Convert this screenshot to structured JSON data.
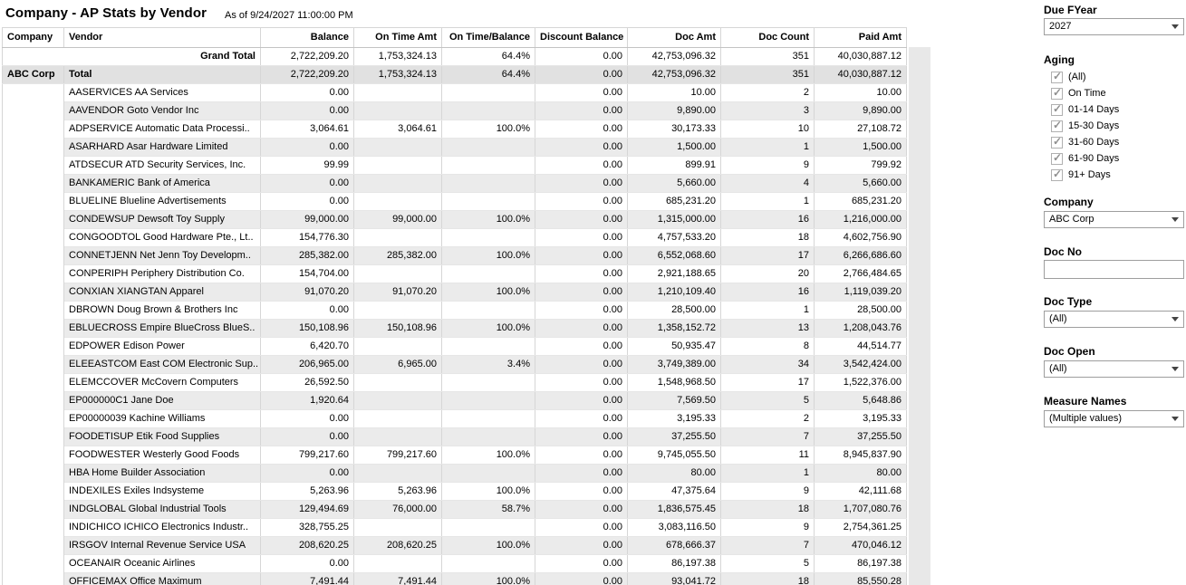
{
  "header": {
    "title": "Company - AP Stats by Vendor",
    "as_of": "As of 9/24/2027 11:00:00 PM"
  },
  "table": {
    "columns": [
      "Company",
      "Vendor",
      "Balance",
      "On Time Amt",
      "On Time/Balance",
      "Discount Balance",
      "Doc Amt",
      "Doc Count",
      "Paid Amt"
    ],
    "grand_total": {
      "label": "Grand Total",
      "values": [
        "2,722,209.20",
        "1,753,324.13",
        "64.4%",
        "0.00",
        "42,753,096.32",
        "351",
        "40,030,887.12"
      ]
    },
    "company_total": {
      "company": "ABC Corp",
      "label": "Total",
      "values": [
        "2,722,209.20",
        "1,753,324.13",
        "64.4%",
        "0.00",
        "42,753,096.32",
        "351",
        "40,030,887.12"
      ]
    },
    "rows": [
      {
        "vendor": "AASERVICES  AA Services",
        "values": [
          "0.00",
          "",
          "",
          "0.00",
          "10.00",
          "2",
          "10.00"
        ]
      },
      {
        "vendor": "AAVENDOR  Goto Vendor Inc",
        "values": [
          "0.00",
          "",
          "",
          "0.00",
          "9,890.00",
          "3",
          "9,890.00"
        ]
      },
      {
        "vendor": "ADPSERVICE  Automatic Data Processi..",
        "values": [
          "3,064.61",
          "3,064.61",
          "100.0%",
          "0.00",
          "30,173.33",
          "10",
          "27,108.72"
        ]
      },
      {
        "vendor": "ASARHARD  Asar Hardware Limited",
        "values": [
          "0.00",
          "",
          "",
          "0.00",
          "1,500.00",
          "1",
          "1,500.00"
        ]
      },
      {
        "vendor": "ATDSECUR  ATD Security Services, Inc.",
        "values": [
          "99.99",
          "",
          "",
          "0.00",
          "899.91",
          "9",
          "799.92"
        ]
      },
      {
        "vendor": "BANKAMERIC  Bank of America",
        "values": [
          "0.00",
          "",
          "",
          "0.00",
          "5,660.00",
          "4",
          "5,660.00"
        ]
      },
      {
        "vendor": "BLUELINE  Blueline Advertisements",
        "values": [
          "0.00",
          "",
          "",
          "0.00",
          "685,231.20",
          "1",
          "685,231.20"
        ]
      },
      {
        "vendor": "CONDEWSUP  Dewsoft Toy Supply",
        "values": [
          "99,000.00",
          "99,000.00",
          "100.0%",
          "0.00",
          "1,315,000.00",
          "16",
          "1,216,000.00"
        ]
      },
      {
        "vendor": "CONGOODTOL  Good Hardware Pte., Lt..",
        "values": [
          "154,776.30",
          "",
          "",
          "0.00",
          "4,757,533.20",
          "18",
          "4,602,756.90"
        ]
      },
      {
        "vendor": "CONNETJENN  Net Jenn Toy Developm..",
        "values": [
          "285,382.00",
          "285,382.00",
          "100.0%",
          "0.00",
          "6,552,068.60",
          "17",
          "6,266,686.60"
        ]
      },
      {
        "vendor": "CONPERIPH  Periphery Distribution Co.",
        "values": [
          "154,704.00",
          "",
          "",
          "0.00",
          "2,921,188.65",
          "20",
          "2,766,484.65"
        ]
      },
      {
        "vendor": "CONXIAN  XIANGTAN Apparel",
        "values": [
          "91,070.20",
          "91,070.20",
          "100.0%",
          "0.00",
          "1,210,109.40",
          "16",
          "1,119,039.20"
        ]
      },
      {
        "vendor": "DBROWN  Doug Brown & Brothers Inc",
        "values": [
          "0.00",
          "",
          "",
          "0.00",
          "28,500.00",
          "1",
          "28,500.00"
        ]
      },
      {
        "vendor": "EBLUECROSS  Empire BlueCross BlueS..",
        "values": [
          "150,108.96",
          "150,108.96",
          "100.0%",
          "0.00",
          "1,358,152.72",
          "13",
          "1,208,043.76"
        ]
      },
      {
        "vendor": "EDPOWER  Edison Power",
        "values": [
          "6,420.70",
          "",
          "",
          "0.00",
          "50,935.47",
          "8",
          "44,514.77"
        ]
      },
      {
        "vendor": "ELEEASTCOM  East COM Electronic Sup..",
        "values": [
          "206,965.00",
          "6,965.00",
          "3.4%",
          "0.00",
          "3,749,389.00",
          "34",
          "3,542,424.00"
        ]
      },
      {
        "vendor": "ELEMCCOVER  McCovern Computers",
        "values": [
          "26,592.50",
          "",
          "",
          "0.00",
          "1,548,968.50",
          "17",
          "1,522,376.00"
        ]
      },
      {
        "vendor": "EP000000C1  Jane Doe",
        "values": [
          "1,920.64",
          "",
          "",
          "0.00",
          "7,569.50",
          "5",
          "5,648.86"
        ]
      },
      {
        "vendor": "EP00000039  Kachine Williams",
        "values": [
          "0.00",
          "",
          "",
          "0.00",
          "3,195.33",
          "2",
          "3,195.33"
        ]
      },
      {
        "vendor": "FOODETISUP  Etik Food Supplies",
        "values": [
          "0.00",
          "",
          "",
          "0.00",
          "37,255.50",
          "7",
          "37,255.50"
        ]
      },
      {
        "vendor": "FOODWESTER  Westerly Good Foods",
        "values": [
          "799,217.60",
          "799,217.60",
          "100.0%",
          "0.00",
          "9,745,055.50",
          "11",
          "8,945,837.90"
        ]
      },
      {
        "vendor": "HBA  Home Builder Association",
        "values": [
          "0.00",
          "",
          "",
          "0.00",
          "80.00",
          "1",
          "80.00"
        ]
      },
      {
        "vendor": "INDEXILES  Exiles Indsysteme",
        "values": [
          "5,263.96",
          "5,263.96",
          "100.0%",
          "0.00",
          "47,375.64",
          "9",
          "42,111.68"
        ]
      },
      {
        "vendor": "INDGLOBAL  Global Industrial Tools",
        "values": [
          "129,494.69",
          "76,000.00",
          "58.7%",
          "0.00",
          "1,836,575.45",
          "18",
          "1,707,080.76"
        ]
      },
      {
        "vendor": "INDICHICO  ICHICO Electronics Industr..",
        "values": [
          "328,755.25",
          "",
          "",
          "0.00",
          "3,083,116.50",
          "9",
          "2,754,361.25"
        ]
      },
      {
        "vendor": "IRSGOV  Internal Revenue Service USA",
        "values": [
          "208,620.25",
          "208,620.25",
          "100.0%",
          "0.00",
          "678,666.37",
          "7",
          "470,046.12"
        ]
      },
      {
        "vendor": "OCEANAIR  Oceanic Airlines",
        "values": [
          "0.00",
          "",
          "",
          "0.00",
          "86,197.38",
          "5",
          "86,197.38"
        ]
      },
      {
        "vendor": "OFFICEMAX  Office Maximum",
        "values": [
          "7,491.44",
          "7,491.44",
          "100.0%",
          "0.00",
          "93,041.72",
          "18",
          "85,550.28"
        ]
      }
    ]
  },
  "filters": {
    "due_fyear": {
      "label": "Due FYear",
      "value": "2027"
    },
    "aging": {
      "label": "Aging",
      "options": [
        {
          "label": "(All)",
          "checked": true
        },
        {
          "label": "On Time",
          "checked": true
        },
        {
          "label": "01-14 Days",
          "checked": true
        },
        {
          "label": "15-30 Days",
          "checked": true
        },
        {
          "label": "31-60 Days",
          "checked": true
        },
        {
          "label": "61-90 Days",
          "checked": true
        },
        {
          "label": "91+ Days",
          "checked": true
        }
      ]
    },
    "company": {
      "label": "Company",
      "value": "ABC Corp"
    },
    "doc_no": {
      "label": "Doc No",
      "value": "",
      "placeholder": ""
    },
    "doc_type": {
      "label": "Doc Type",
      "value": "(All)"
    },
    "doc_open": {
      "label": "Doc Open",
      "value": "(All)"
    },
    "measure_names": {
      "label": "Measure Names",
      "value": "(Multiple values)"
    }
  }
}
